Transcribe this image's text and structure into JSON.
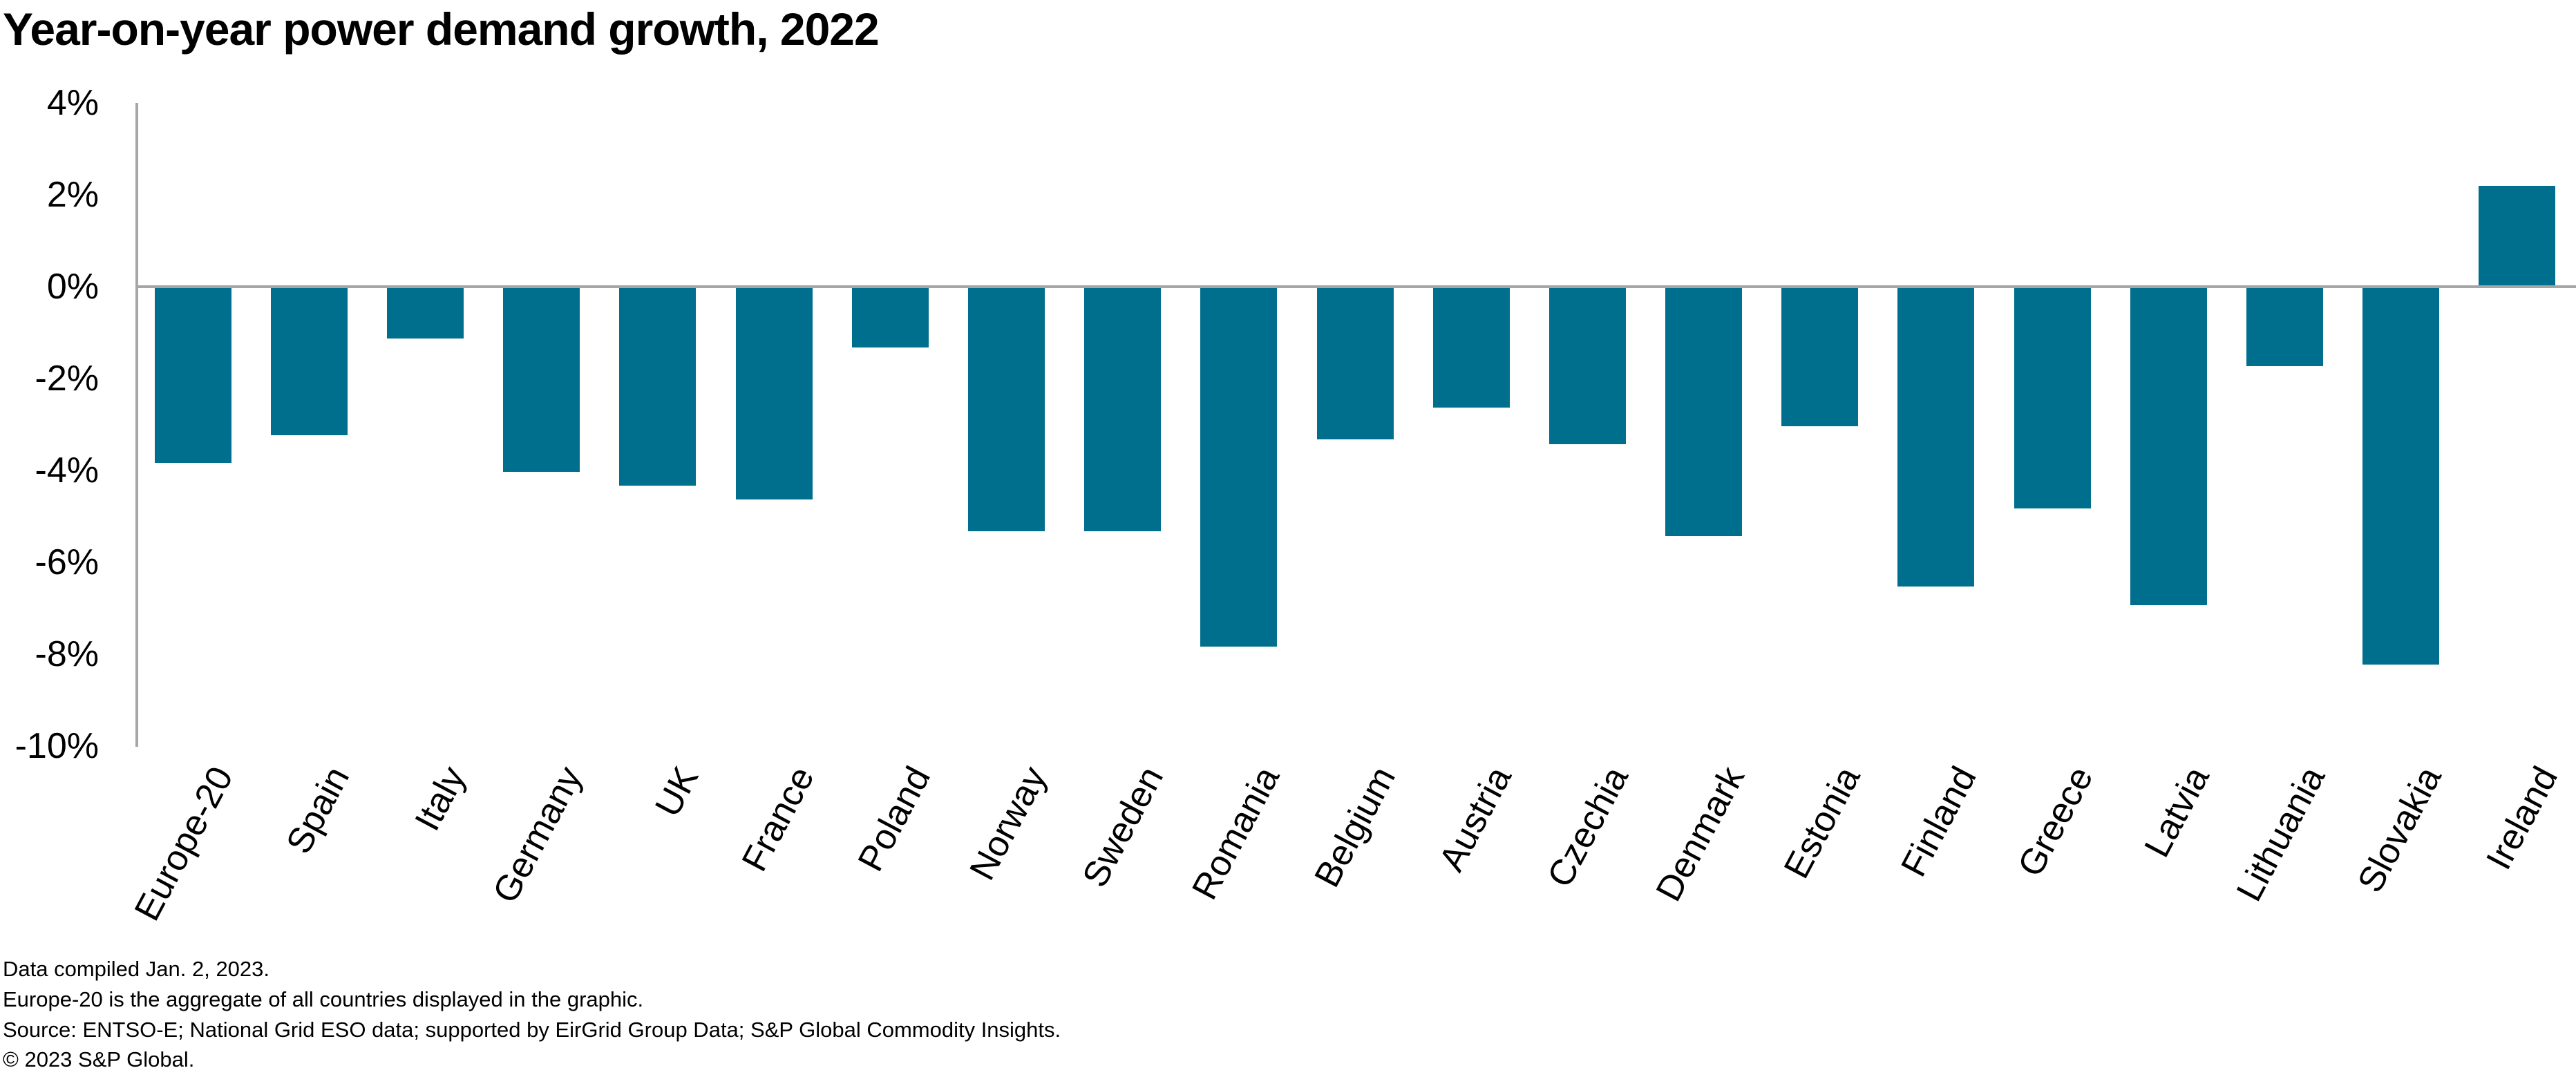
{
  "title": "Year-on-year power demand growth, 2022",
  "chart_data": {
    "type": "bar",
    "title": "Year-on-year power demand growth, 2022",
    "series_name": "Year-on-year power demand growth (%)",
    "categories": [
      "Europe-20",
      "Spain",
      "Italy",
      "Germany",
      "UK",
      "France",
      "Poland",
      "Norway",
      "Sweden",
      "Romania",
      "Belgium",
      "Austria",
      "Czechia",
      "Denmark",
      "Estonia",
      "Finland",
      "Greece",
      "Latvia",
      "Lithuania",
      "Slovakia",
      "Ireland"
    ],
    "values": [
      -3.8,
      -3.2,
      -1.1,
      -4.0,
      -4.3,
      -4.6,
      -1.3,
      -5.3,
      -5.3,
      -7.8,
      -3.3,
      -2.6,
      -3.4,
      -5.4,
      -3.0,
      -6.5,
      -4.8,
      -6.9,
      -1.7,
      -8.2,
      2.2
    ],
    "unit": "%",
    "xlabel": "",
    "ylabel": "",
    "ylim": [
      -10,
      4
    ],
    "yticks": [
      4,
      2,
      0,
      -2,
      -4,
      -6,
      -8,
      -10
    ],
    "ytick_labels": [
      "4%",
      "2%",
      "0%",
      "-2%",
      "-4%",
      "-6%",
      "-8%",
      "-10%"
    ],
    "grid": "zero-line-only",
    "legend_position": "none",
    "bar_color": "#006F8D",
    "axis_color": "#A6A6A6",
    "text_color": "#000000",
    "background_color": "#FFFFFF"
  },
  "footnotes": [
    "Data compiled Jan. 2, 2023.",
    "Europe-20 is the aggregate of all countries displayed in the graphic.",
    "Source: ENTSO-E; National Grid ESO data; supported by EirGrid Group Data; S&P Global Commodity Insights.",
    "© 2023 S&P Global."
  ]
}
